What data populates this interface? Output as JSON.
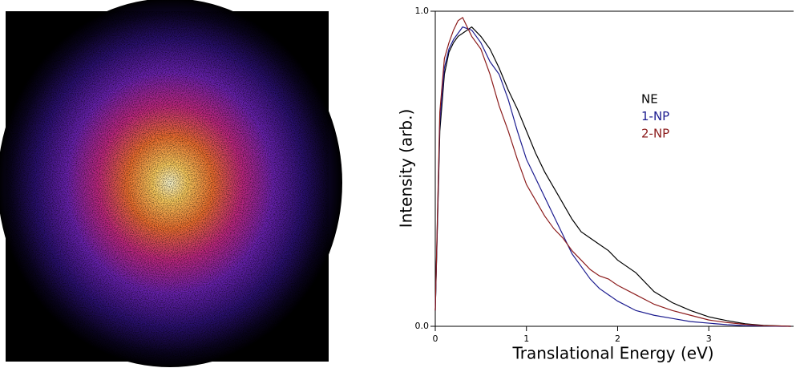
{
  "chart_data": {
    "type": "line",
    "xlabel": "Translational Energy (eV)",
    "ylabel": "Intensity (arb.)",
    "x": [
      0,
      0.05,
      0.1,
      0.15,
      0.2,
      0.25,
      0.3,
      0.4,
      0.5,
      0.6,
      0.7,
      0.8,
      0.9,
      1.0,
      1.1,
      1.2,
      1.3,
      1.4,
      1.5,
      1.6,
      1.7,
      1.8,
      1.9,
      2.0,
      2.2,
      2.4,
      2.6,
      2.8,
      3.0,
      3.2,
      3.4,
      3.6,
      3.8,
      3.9
    ],
    "series": [
      {
        "name": "NE",
        "color": "#000000",
        "values": [
          0.05,
          0.62,
          0.8,
          0.87,
          0.9,
          0.92,
          0.93,
          0.95,
          0.92,
          0.88,
          0.82,
          0.75,
          0.69,
          0.62,
          0.55,
          0.49,
          0.44,
          0.39,
          0.34,
          0.3,
          0.28,
          0.26,
          0.24,
          0.21,
          0.17,
          0.11,
          0.075,
          0.05,
          0.03,
          0.018,
          0.008,
          0.003,
          0.001,
          0
        ]
      },
      {
        "name": "1-NP",
        "color": "#1c1c8f",
        "values": [
          0.05,
          0.65,
          0.82,
          0.88,
          0.91,
          0.93,
          0.95,
          0.94,
          0.9,
          0.84,
          0.8,
          0.72,
          0.62,
          0.53,
          0.47,
          0.41,
          0.35,
          0.29,
          0.23,
          0.19,
          0.15,
          0.12,
          0.1,
          0.08,
          0.05,
          0.035,
          0.025,
          0.015,
          0.01,
          0.005,
          0.002,
          0.001,
          0,
          0
        ]
      },
      {
        "name": "2-NP",
        "color": "#8c1c1c",
        "values": [
          0.05,
          0.68,
          0.85,
          0.9,
          0.94,
          0.97,
          0.98,
          0.92,
          0.88,
          0.8,
          0.7,
          0.62,
          0.53,
          0.45,
          0.4,
          0.35,
          0.31,
          0.28,
          0.24,
          0.21,
          0.18,
          0.16,
          0.15,
          0.13,
          0.1,
          0.07,
          0.05,
          0.035,
          0.02,
          0.012,
          0.006,
          0.002,
          0.001,
          0
        ]
      }
    ],
    "xlim": [
      0,
      3.93
    ],
    "ylim": [
      0,
      1
    ],
    "xticks": [
      0,
      1,
      2,
      3
    ],
    "yticks": [
      {
        "value": 0,
        "label": "0.0"
      },
      {
        "value": 1,
        "label": "1.0"
      }
    ]
  }
}
